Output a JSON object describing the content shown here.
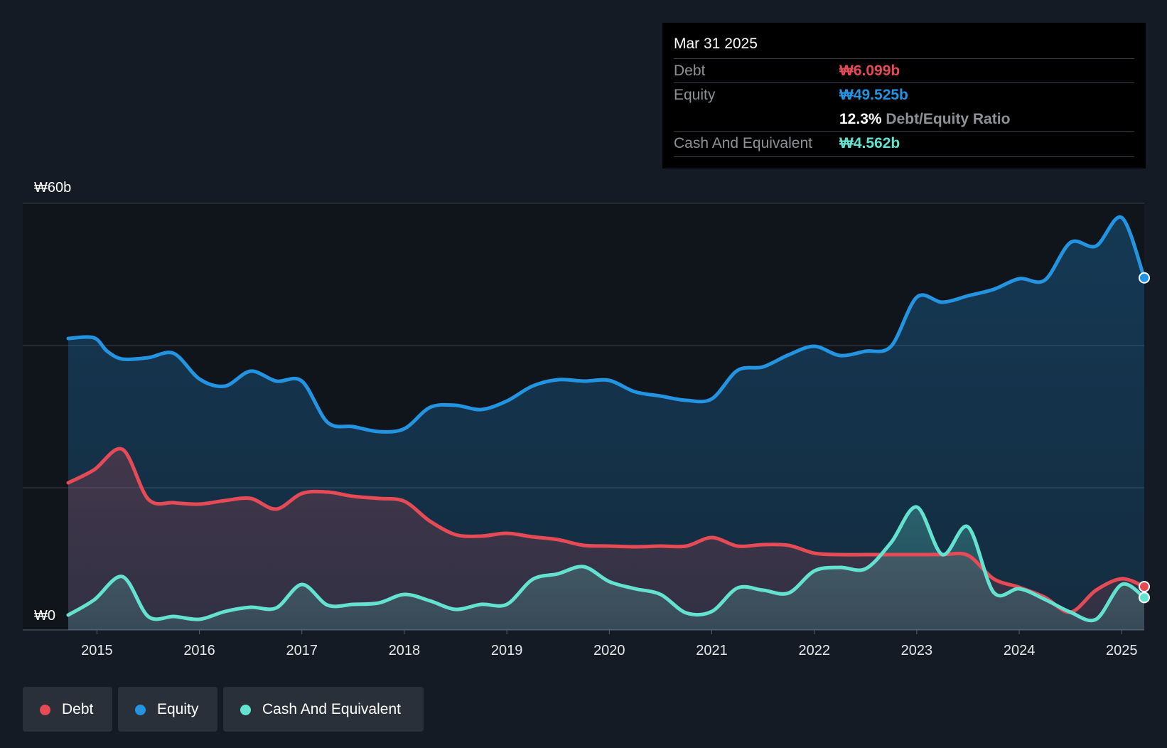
{
  "chart_data": {
    "type": "area",
    "title": "",
    "xlabel": "",
    "ylabel": "",
    "ylim": [
      0,
      60
    ],
    "xlim": [
      2014.72,
      2025.22
    ],
    "y_tick_labels": [
      {
        "value": 60,
        "label": "₩60b"
      },
      {
        "value": 0,
        "label": "₩0"
      }
    ],
    "gridlines": [
      0,
      20,
      40,
      60
    ],
    "x_ticks": [
      2015,
      2016,
      2017,
      2018,
      2019,
      2020,
      2021,
      2022,
      2023,
      2024,
      2025
    ],
    "series": [
      {
        "name": "Equity",
        "color": "#2394e2",
        "points": [
          [
            2014.72,
            41.0
          ],
          [
            2014.97,
            41.1
          ],
          [
            2015.1,
            39.2
          ],
          [
            2015.25,
            38.1
          ],
          [
            2015.5,
            38.3
          ],
          [
            2015.75,
            38.9
          ],
          [
            2016.0,
            35.3
          ],
          [
            2016.25,
            34.3
          ],
          [
            2016.5,
            36.4
          ],
          [
            2016.75,
            35.0
          ],
          [
            2017.0,
            35.0
          ],
          [
            2017.25,
            29.2
          ],
          [
            2017.5,
            28.6
          ],
          [
            2017.75,
            27.9
          ],
          [
            2018.0,
            28.3
          ],
          [
            2018.25,
            31.3
          ],
          [
            2018.5,
            31.6
          ],
          [
            2018.75,
            31.0
          ],
          [
            2019.0,
            32.2
          ],
          [
            2019.25,
            34.3
          ],
          [
            2019.5,
            35.2
          ],
          [
            2019.75,
            35.0
          ],
          [
            2020.0,
            35.1
          ],
          [
            2020.25,
            33.5
          ],
          [
            2020.5,
            32.9
          ],
          [
            2020.75,
            32.3
          ],
          [
            2021.0,
            32.5
          ],
          [
            2021.25,
            36.5
          ],
          [
            2021.5,
            37.0
          ],
          [
            2021.75,
            38.7
          ],
          [
            2022.0,
            39.9
          ],
          [
            2022.25,
            38.6
          ],
          [
            2022.5,
            39.2
          ],
          [
            2022.75,
            39.9
          ],
          [
            2023.0,
            46.8
          ],
          [
            2023.25,
            46.1
          ],
          [
            2023.5,
            47.0
          ],
          [
            2023.75,
            47.9
          ],
          [
            2024.0,
            49.4
          ],
          [
            2024.25,
            49.2
          ],
          [
            2024.5,
            54.5
          ],
          [
            2024.75,
            54.0
          ],
          [
            2025.0,
            58.0
          ],
          [
            2025.22,
            49.525
          ]
        ]
      },
      {
        "name": "Debt",
        "color": "#e64b55",
        "points": [
          [
            2014.72,
            20.7
          ],
          [
            2014.97,
            22.5
          ],
          [
            2015.25,
            25.4
          ],
          [
            2015.5,
            18.4
          ],
          [
            2015.75,
            17.9
          ],
          [
            2016.0,
            17.7
          ],
          [
            2016.25,
            18.2
          ],
          [
            2016.5,
            18.5
          ],
          [
            2016.75,
            17.0
          ],
          [
            2017.0,
            19.2
          ],
          [
            2017.25,
            19.4
          ],
          [
            2017.5,
            18.8
          ],
          [
            2017.75,
            18.5
          ],
          [
            2018.0,
            18.1
          ],
          [
            2018.25,
            15.3
          ],
          [
            2018.5,
            13.4
          ],
          [
            2018.75,
            13.2
          ],
          [
            2019.0,
            13.6
          ],
          [
            2019.25,
            13.1
          ],
          [
            2019.5,
            12.7
          ],
          [
            2019.75,
            11.9
          ],
          [
            2020.0,
            11.8
          ],
          [
            2020.25,
            11.7
          ],
          [
            2020.5,
            11.8
          ],
          [
            2020.75,
            11.8
          ],
          [
            2021.0,
            13.0
          ],
          [
            2021.25,
            11.8
          ],
          [
            2021.5,
            12.0
          ],
          [
            2021.75,
            11.9
          ],
          [
            2022.0,
            10.8
          ],
          [
            2022.25,
            10.6
          ],
          [
            2022.5,
            10.6
          ],
          [
            2022.75,
            10.6
          ],
          [
            2023.0,
            10.6
          ],
          [
            2023.25,
            10.6
          ],
          [
            2023.5,
            10.5
          ],
          [
            2023.75,
            7.2
          ],
          [
            2024.0,
            6.0
          ],
          [
            2024.25,
            4.6
          ],
          [
            2024.5,
            2.5
          ],
          [
            2024.75,
            5.6
          ],
          [
            2025.0,
            7.2
          ],
          [
            2025.22,
            6.099
          ]
        ]
      },
      {
        "name": "Cash And Equivalent",
        "color": "#63e2cf",
        "points": [
          [
            2014.72,
            2.1
          ],
          [
            2014.97,
            4.2
          ],
          [
            2015.25,
            7.5
          ],
          [
            2015.5,
            1.9
          ],
          [
            2015.75,
            1.9
          ],
          [
            2016.0,
            1.5
          ],
          [
            2016.25,
            2.6
          ],
          [
            2016.5,
            3.2
          ],
          [
            2016.75,
            3.1
          ],
          [
            2017.0,
            6.4
          ],
          [
            2017.25,
            3.5
          ],
          [
            2017.5,
            3.6
          ],
          [
            2017.75,
            3.8
          ],
          [
            2018.0,
            5.0
          ],
          [
            2018.25,
            4.1
          ],
          [
            2018.5,
            2.9
          ],
          [
            2018.75,
            3.6
          ],
          [
            2019.0,
            3.6
          ],
          [
            2019.25,
            7.1
          ],
          [
            2019.5,
            7.9
          ],
          [
            2019.75,
            8.9
          ],
          [
            2020.0,
            6.8
          ],
          [
            2020.25,
            5.8
          ],
          [
            2020.5,
            5.0
          ],
          [
            2020.75,
            2.4
          ],
          [
            2021.0,
            2.6
          ],
          [
            2021.25,
            5.9
          ],
          [
            2021.5,
            5.6
          ],
          [
            2021.75,
            5.2
          ],
          [
            2022.0,
            8.3
          ],
          [
            2022.25,
            8.8
          ],
          [
            2022.5,
            8.6
          ],
          [
            2022.75,
            12.3
          ],
          [
            2023.0,
            17.3
          ],
          [
            2023.25,
            10.6
          ],
          [
            2023.5,
            14.5
          ],
          [
            2023.75,
            5.3
          ],
          [
            2024.0,
            5.8
          ],
          [
            2024.25,
            4.3
          ],
          [
            2024.5,
            2.5
          ],
          [
            2024.75,
            1.5
          ],
          [
            2025.0,
            6.4
          ],
          [
            2025.22,
            4.562
          ]
        ]
      }
    ],
    "tooltip": {
      "date": "Mar 31 2025",
      "rows": [
        {
          "name": "Debt",
          "value": "₩6.099b",
          "color": "#e64b55"
        },
        {
          "name": "Equity",
          "value": "₩49.525b",
          "color": "#2394e2"
        },
        {
          "ratio_value": "12.3%",
          "ratio_label": "Debt/Equity Ratio"
        },
        {
          "name": "Cash And Equivalent",
          "value": "₩4.562b",
          "color": "#63e2cf"
        }
      ]
    },
    "legend": [
      {
        "label": "Debt",
        "color": "#e64b55"
      },
      {
        "label": "Equity",
        "color": "#2394e2"
      },
      {
        "label": "Cash And Equivalent",
        "color": "#63e2cf"
      }
    ]
  }
}
